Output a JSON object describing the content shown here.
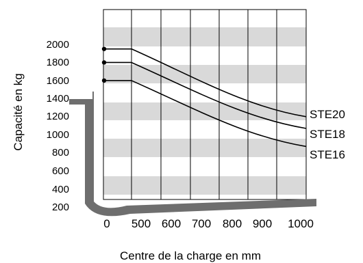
{
  "chart_data": {
    "type": "line",
    "title": "",
    "xlabel": "Centre de la charge en mm",
    "ylabel": "Capacité en kg",
    "x_ticks": [
      "0",
      "500",
      "600",
      "700",
      "800",
      "900",
      "1000"
    ],
    "y_ticks": [
      "200",
      "400",
      "600",
      "800",
      "1000",
      "1200",
      "1400",
      "1600",
      "1800",
      "2000"
    ],
    "ylim": [
      200,
      2000
    ],
    "grid": "vertical lines with alternating horizontal bands",
    "series": [
      {
        "name": "STE20",
        "points": [
          [
            0,
            1950
          ],
          [
            500,
            1950
          ],
          [
            1000,
            1200
          ]
        ]
      },
      {
        "name": "STE18",
        "points": [
          [
            0,
            1800
          ],
          [
            500,
            1800
          ],
          [
            1000,
            1070
          ]
        ]
      },
      {
        "name": "STE16",
        "points": [
          [
            0,
            1600
          ],
          [
            500,
            1600
          ],
          [
            1000,
            870
          ]
        ]
      }
    ],
    "colors": {
      "band": "#d9d9d9",
      "fork": "#6e6e6e",
      "line": "#000000"
    }
  }
}
